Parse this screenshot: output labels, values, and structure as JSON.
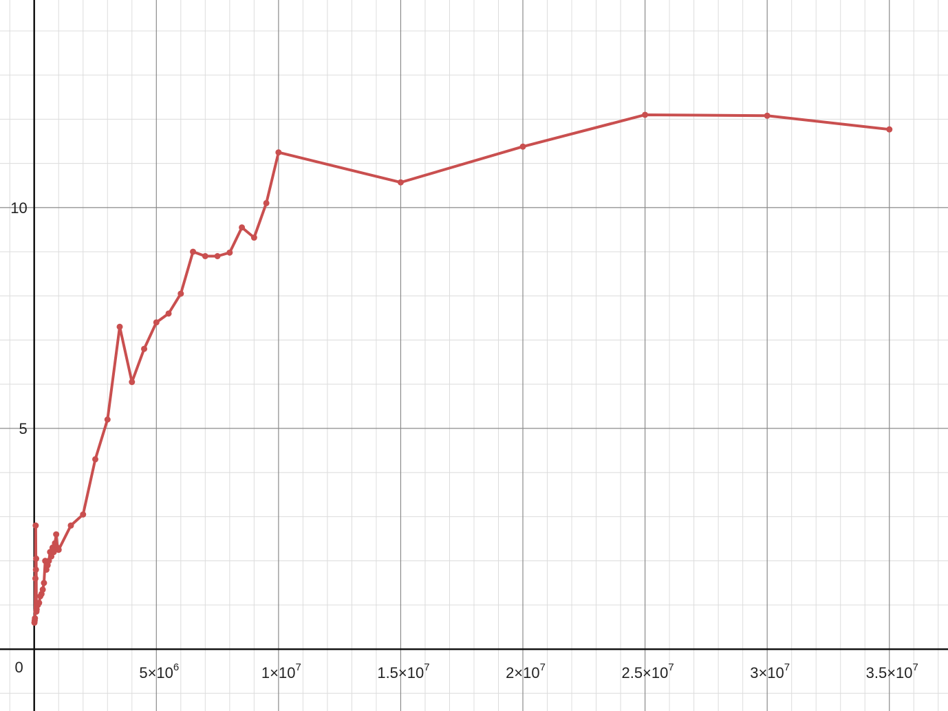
{
  "chart_data": {
    "type": "line",
    "title": "",
    "xlabel": "",
    "ylabel": "",
    "xlim": [
      -1400000,
      37400000
    ],
    "ylim": [
      -1.4,
      14.7
    ],
    "grid": true,
    "origin_label": "0",
    "x_ticks": [
      {
        "value": 5000000,
        "mantissa": "5×10",
        "exp": "6"
      },
      {
        "value": 10000000,
        "mantissa": "1×10",
        "exp": "7"
      },
      {
        "value": 15000000,
        "mantissa": "1.5×10",
        "exp": "7"
      },
      {
        "value": 20000000,
        "mantissa": "2×10",
        "exp": "7"
      },
      {
        "value": 25000000,
        "mantissa": "2.5×10",
        "exp": "7"
      },
      {
        "value": 30000000,
        "mantissa": "3×10",
        "exp": "7"
      },
      {
        "value": 35000000,
        "mantissa": "3.5×10",
        "exp": "7"
      }
    ],
    "y_ticks": [
      {
        "value": 5,
        "label": "5"
      },
      {
        "value": 10,
        "label": "10"
      }
    ],
    "series": [
      {
        "color": "#c94f4f",
        "x": [
          10000,
          20000,
          30000,
          50000,
          60000,
          70000,
          80000,
          90000,
          100000,
          150000,
          200000,
          250000,
          300000,
          350000,
          400000,
          450000,
          500000,
          550000,
          600000,
          650000,
          700000,
          750000,
          800000,
          850000,
          900000,
          950000,
          1000000,
          1500000,
          2000000,
          2500000,
          3000000,
          3500000,
          4000000,
          4500000,
          5000000,
          5500000,
          6000000,
          6500000,
          7000000,
          7500000,
          8000000,
          8500000,
          9000000,
          9500000,
          10000000,
          15000000,
          20000000,
          25000000,
          30000000,
          35000000
        ],
        "y": [
          0.6,
          0.65,
          0.7,
          1.6,
          2.8,
          1.8,
          2.05,
          0.85,
          0.9,
          1.0,
          1.05,
          1.2,
          1.25,
          1.35,
          1.5,
          2.0,
          1.8,
          1.9,
          2.0,
          2.2,
          2.1,
          2.3,
          2.2,
          2.4,
          2.6,
          2.3,
          2.25,
          2.8,
          3.05,
          4.3,
          5.2,
          7.3,
          6.05,
          6.8,
          7.4,
          7.6,
          8.05,
          9.0,
          8.9,
          8.9,
          8.98,
          9.55,
          9.32,
          10.1,
          11.25,
          10.57,
          11.38,
          12.1,
          12.08,
          11.77
        ]
      }
    ]
  }
}
